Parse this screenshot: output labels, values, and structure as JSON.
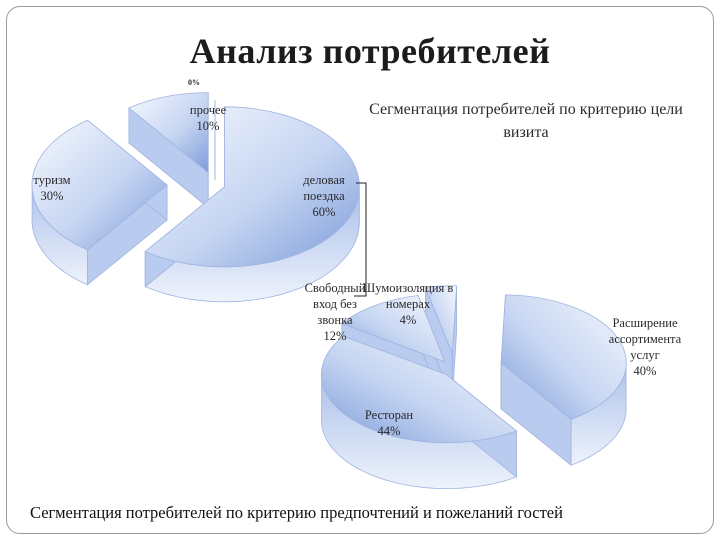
{
  "slide": {
    "title": "Анализ потребителей",
    "bottom_caption": "Сегментация потребителей по критерию предпочтений и пожеланий гостей"
  },
  "chart_data": [
    {
      "type": "pie",
      "title": "Сегментация потребителей по критерию цели визита",
      "style": "3d-exploded",
      "slices": [
        {
          "label": "деловая поездка",
          "value": 60,
          "value_text": "60%"
        },
        {
          "label": "туризм",
          "value": 30,
          "value_text": "30%"
        },
        {
          "label": "прочее",
          "value": 10,
          "value_text": "10%"
        },
        {
          "label": "",
          "value": 0,
          "value_text": "0%"
        }
      ]
    },
    {
      "type": "pie",
      "title": "Сегментация потребителей по критерию предпочтений и пожеланий гостей",
      "style": "3d-exploded",
      "slices": [
        {
          "label": "Расширение ассортимента услуг",
          "value": 40,
          "value_text": "40%"
        },
        {
          "label": "Ресторан",
          "value": 44,
          "value_text": "44%"
        },
        {
          "label": "Свободный вход без звонка",
          "value": 12,
          "value_text": "12%"
        },
        {
          "label": "Шумоизоляция в номерах",
          "value": 4,
          "value_text": "4%"
        }
      ]
    }
  ],
  "colors": {
    "slice_light": "#f4f7fd",
    "slice_dark": "#7a9ad8",
    "slice_edge": "#9fb3e0",
    "text": "#2a2a2a"
  }
}
